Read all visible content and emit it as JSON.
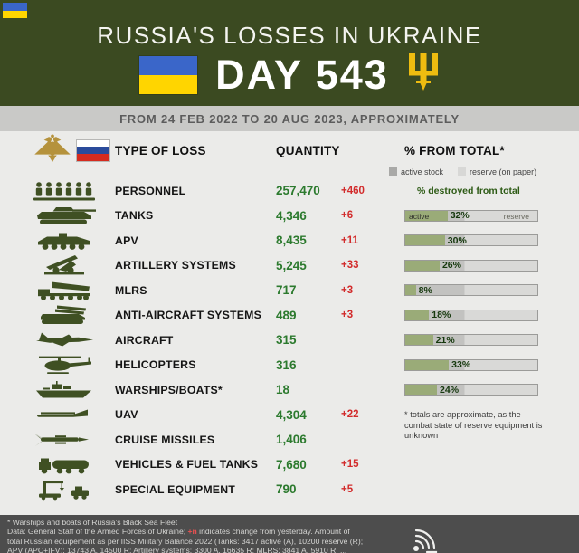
{
  "header": {
    "title": "RUSSIA'S LOSSES IN UKRAINE",
    "day": "DAY 543",
    "accent_olive": "#3b4a21",
    "flag_blue": "#3a66c9",
    "flag_yellow": "#ffd500",
    "trident_gold": "#eebc10"
  },
  "date_bar": {
    "text": "FROM 24 FEB 2022 TO 20 AUG 2023, APPROXIMATELY"
  },
  "table": {
    "col_type": "TYPE OF LOSS",
    "col_quantity": "QUANTITY",
    "col_percent": "% FROM TOTAL*",
    "legend_active": "active stock",
    "legend_reserve": "reserve (on paper)",
    "bar_title": "% destroyed from total",
    "bar_active_label": "active",
    "bar_reserve_label": "reserve",
    "note": "* totals are approximate, as the combat state of reserve equipment is unknown",
    "quantity_color": "#2c7a2e",
    "change_color": "#d22b2b",
    "bar_fill_color": "#9aab78",
    "rows": [
      {
        "icon": "personnel-icon",
        "label": "PERSONNEL",
        "quantity": "257,470",
        "change": "+460",
        "percent": null,
        "percent_label": ""
      },
      {
        "icon": "tank-icon",
        "label": "TANKS",
        "quantity": "4,346",
        "change": "+6",
        "percent": 32,
        "percent_label": "32%"
      },
      {
        "icon": "apv-icon",
        "label": "APV",
        "quantity": "8,435",
        "change": "+11",
        "percent": 30,
        "percent_label": "30%"
      },
      {
        "icon": "artillery-icon",
        "label": "ARTILLERY SYSTEMS",
        "quantity": "5,245",
        "change": "+33",
        "percent": 26,
        "percent_label": "26%"
      },
      {
        "icon": "mlrs-icon",
        "label": "MLRS",
        "quantity": "717",
        "change": "+3",
        "percent": 8,
        "percent_label": "8%"
      },
      {
        "icon": "anti-aircraft-icon",
        "label": "ANTI-AIRCRAFT SYSTEMS",
        "quantity": "489",
        "change": "+3",
        "percent": 18,
        "percent_label": "18%"
      },
      {
        "icon": "aircraft-icon",
        "label": "AIRCRAFT",
        "quantity": "315",
        "change": "",
        "percent": 21,
        "percent_label": "21%"
      },
      {
        "icon": "helicopter-icon",
        "label": "HELICOPTERS",
        "quantity": "316",
        "change": "",
        "percent": 33,
        "percent_label": "33%"
      },
      {
        "icon": "warship-icon",
        "label": "WARSHIPS/BOATS*",
        "quantity": "18",
        "change": "",
        "percent": 24,
        "percent_label": "24%"
      },
      {
        "icon": "uav-icon",
        "label": "UAV",
        "quantity": "4,304",
        "change": "+22",
        "percent": null,
        "percent_label": ""
      },
      {
        "icon": "cruise-missile-icon",
        "label": "CRUISE MISSILES",
        "quantity": "1,406",
        "change": "",
        "percent": null,
        "percent_label": ""
      },
      {
        "icon": "vehicles-icon",
        "label": "VEHICLES & FUEL TANKS",
        "quantity": "7,680",
        "change": "+15",
        "percent": null,
        "percent_label": ""
      },
      {
        "icon": "special-equipment-icon",
        "label": "SPECIAL EQUIPMENT",
        "quantity": "790",
        "change": "+5",
        "percent": null,
        "percent_label": ""
      }
    ]
  },
  "footer": {
    "line1": "* Warships and boats of Russia's Black Sea Fleet",
    "line2_pre": "Data: General Staff of the Armed Forces of Ukraine; ",
    "line2_highlight": "+n",
    "line2_post": " indicates change from yesterday. Amount of",
    "line3": "total Russian equipement as per IISS Military Balance 2022 (Tanks: 3417 active (A), 10200 reserve (R);",
    "line4": "APV (APC+IFV): 13743 A, 14500 R; Artillery systems: 3300 A, 16635 R; MLRS: 3841 A, 5910 R; ..."
  },
  "chart_data": {
    "type": "table",
    "title": "RUSSIA'S LOSSES IN UKRAINE — DAY 543",
    "subtitle": "FROM 24 FEB 2022 TO 20 AUG 2023, APPROXIMATELY",
    "columns": [
      "TYPE OF LOSS",
      "QUANTITY",
      "CHANGE FROM YESTERDAY",
      "% DESTROYED FROM TOTAL"
    ],
    "rows": [
      [
        "PERSONNEL",
        257470,
        460,
        null
      ],
      [
        "TANKS",
        4346,
        6,
        32
      ],
      [
        "APV",
        8435,
        11,
        30
      ],
      [
        "ARTILLERY SYSTEMS",
        5245,
        33,
        26
      ],
      [
        "MLRS",
        717,
        3,
        8
      ],
      [
        "ANTI-AIRCRAFT SYSTEMS",
        489,
        3,
        18
      ],
      [
        "AIRCRAFT",
        315,
        null,
        21
      ],
      [
        "HELICOPTERS",
        316,
        null,
        33
      ],
      [
        "WARSHIPS/BOATS",
        18,
        null,
        24
      ],
      [
        "UAV",
        4304,
        22,
        null
      ],
      [
        "CRUISE MISSILES",
        1406,
        null,
        null
      ],
      [
        "VEHICLES & FUEL TANKS",
        7680,
        15,
        null
      ],
      [
        "SPECIAL EQUIPMENT",
        790,
        5,
        null
      ]
    ],
    "bar_unit": "percent destroyed of total (active stock + reserve on paper)",
    "legend": [
      "active stock",
      "reserve (on paper)"
    ],
    "legend_position": "top-right"
  }
}
